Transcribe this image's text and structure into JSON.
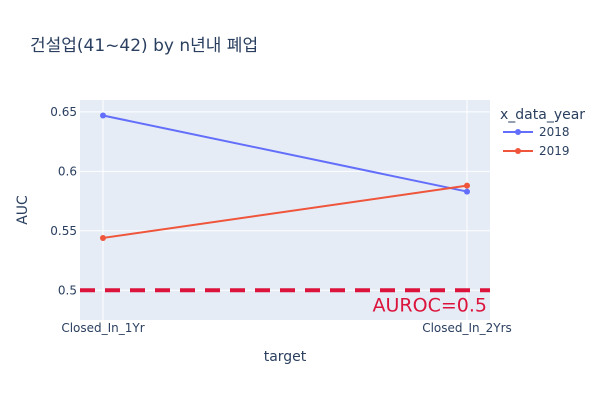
{
  "chart_data": {
    "type": "line",
    "title": "건설업(41~42) by n년내 폐업",
    "xlabel": "target",
    "ylabel": "AUC",
    "categories": [
      "Closed_In_1Yr",
      "Closed_In_2Yrs"
    ],
    "ylim": [
      0.475,
      0.66
    ],
    "yticks": [
      0.5,
      0.55,
      0.6,
      0.65
    ],
    "ytick_labels": [
      "0.5",
      "0.55",
      "0.6",
      "0.65"
    ],
    "grid": true,
    "legend": {
      "title": "x_data_year",
      "placement": "top-right"
    },
    "series": [
      {
        "name": "2018",
        "color": "#636efa",
        "values": [
          0.647,
          0.583
        ]
      },
      {
        "name": "2019",
        "color": "#ef553b",
        "values": [
          0.544,
          0.588
        ]
      }
    ],
    "reference_line": {
      "y": 0.5,
      "label": "AUROC=0.5",
      "color": "#dc143c",
      "style": "dashed"
    }
  }
}
